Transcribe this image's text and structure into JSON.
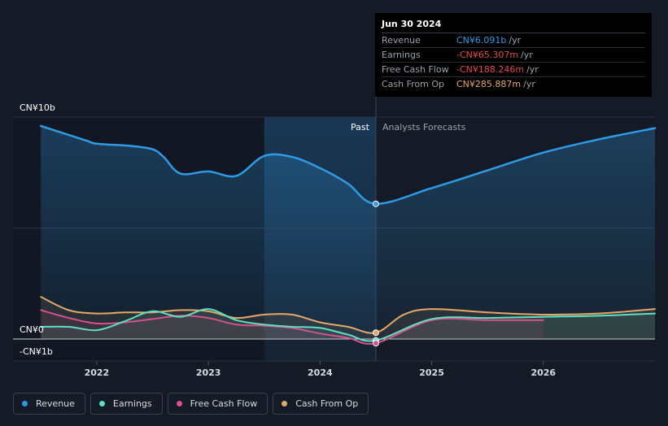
{
  "chart_data": {
    "type": "area",
    "y_axis_labels": {
      "top": "CN¥10b",
      "zero": "CN¥0",
      "bottom": "-CN¥1b"
    },
    "ylim": [
      -1,
      10
    ],
    "x_ticks": [
      "2022",
      "2023",
      "2024",
      "2025",
      "2026"
    ],
    "x_tick_values": [
      2022,
      2023,
      2024,
      2025,
      2026
    ],
    "xlim": [
      2021.25,
      2027.0
    ],
    "past_region": [
      2023.5,
      2024.5
    ],
    "divider_x": 2024.5,
    "past_label": "Past",
    "forecast_label": "Analysts Forecasts",
    "grid": true,
    "series": [
      {
        "name": "Revenue",
        "color": "#2f9be6",
        "x": [
          2021.5,
          2021.9,
          2022.0,
          2022.3,
          2022.5,
          2022.6,
          2022.75,
          2023.0,
          2023.25,
          2023.5,
          2023.75,
          2024.0,
          2024.25,
          2024.5,
          2025.0,
          2025.5,
          2026.0,
          2026.5,
          2027.0
        ],
        "y": [
          9.6,
          8.95,
          8.8,
          8.7,
          8.55,
          8.2,
          7.45,
          7.55,
          7.35,
          8.25,
          8.2,
          7.7,
          7.0,
          6.091,
          6.8,
          7.6,
          8.4,
          9.0,
          9.5
        ]
      },
      {
        "name": "Earnings",
        "color": "#5ee0c6",
        "x": [
          2021.5,
          2021.75,
          2022.0,
          2022.25,
          2022.5,
          2022.75,
          2023.0,
          2023.25,
          2023.5,
          2023.75,
          2024.0,
          2024.25,
          2024.5,
          2025.0,
          2025.5,
          2026.0,
          2026.5,
          2027.0
        ],
        "y": [
          0.55,
          0.55,
          0.4,
          0.8,
          1.25,
          1.0,
          1.35,
          0.85,
          0.65,
          0.55,
          0.5,
          0.2,
          -0.065,
          0.9,
          0.95,
          1.0,
          1.05,
          1.15
        ]
      },
      {
        "name": "Free Cash Flow",
        "color": "#d9508d",
        "x": [
          2021.5,
          2021.75,
          2022.0,
          2022.25,
          2022.5,
          2022.75,
          2023.0,
          2023.25,
          2023.5,
          2023.75,
          2024.0,
          2024.25,
          2024.5,
          2025.0,
          2025.5,
          2026.0
        ],
        "y": [
          1.3,
          0.95,
          0.7,
          0.75,
          0.9,
          1.05,
          0.95,
          0.65,
          0.6,
          0.5,
          0.25,
          0.05,
          -0.188,
          0.85,
          0.85,
          0.85
        ]
      },
      {
        "name": "Cash From Op",
        "color": "#e5a865",
        "x": [
          2021.5,
          2021.75,
          2022.0,
          2022.25,
          2022.5,
          2022.75,
          2023.0,
          2023.25,
          2023.5,
          2023.75,
          2024.0,
          2024.25,
          2024.5,
          2024.75,
          2025.0,
          2025.5,
          2026.0,
          2026.5,
          2027.0
        ],
        "y": [
          1.9,
          1.3,
          1.15,
          1.2,
          1.2,
          1.3,
          1.25,
          0.95,
          1.1,
          1.1,
          0.75,
          0.55,
          0.286,
          1.1,
          1.35,
          1.2,
          1.1,
          1.15,
          1.35
        ]
      }
    ],
    "tooltip": {
      "date": "Jun 30 2024",
      "rows": [
        {
          "name": "Revenue",
          "value": "CN¥6.091b",
          "unit": "/yr",
          "color": "#2f9be6"
        },
        {
          "name": "Earnings",
          "value": "-CN¥65.307m",
          "unit": "/yr",
          "color": "#e5484d"
        },
        {
          "name": "Free Cash Flow",
          "value": "-CN¥188.246m",
          "unit": "/yr",
          "color": "#e5484d"
        },
        {
          "name": "Cash From Op",
          "value": "CN¥285.887m",
          "unit": "/yr",
          "color": "#e5a865"
        }
      ]
    }
  },
  "legend": [
    {
      "label": "Revenue",
      "color": "#2f9be6"
    },
    {
      "label": "Earnings",
      "color": "#5ee0c6"
    },
    {
      "label": "Free Cash Flow",
      "color": "#d9508d"
    },
    {
      "label": "Cash From Op",
      "color": "#e5a865"
    }
  ]
}
